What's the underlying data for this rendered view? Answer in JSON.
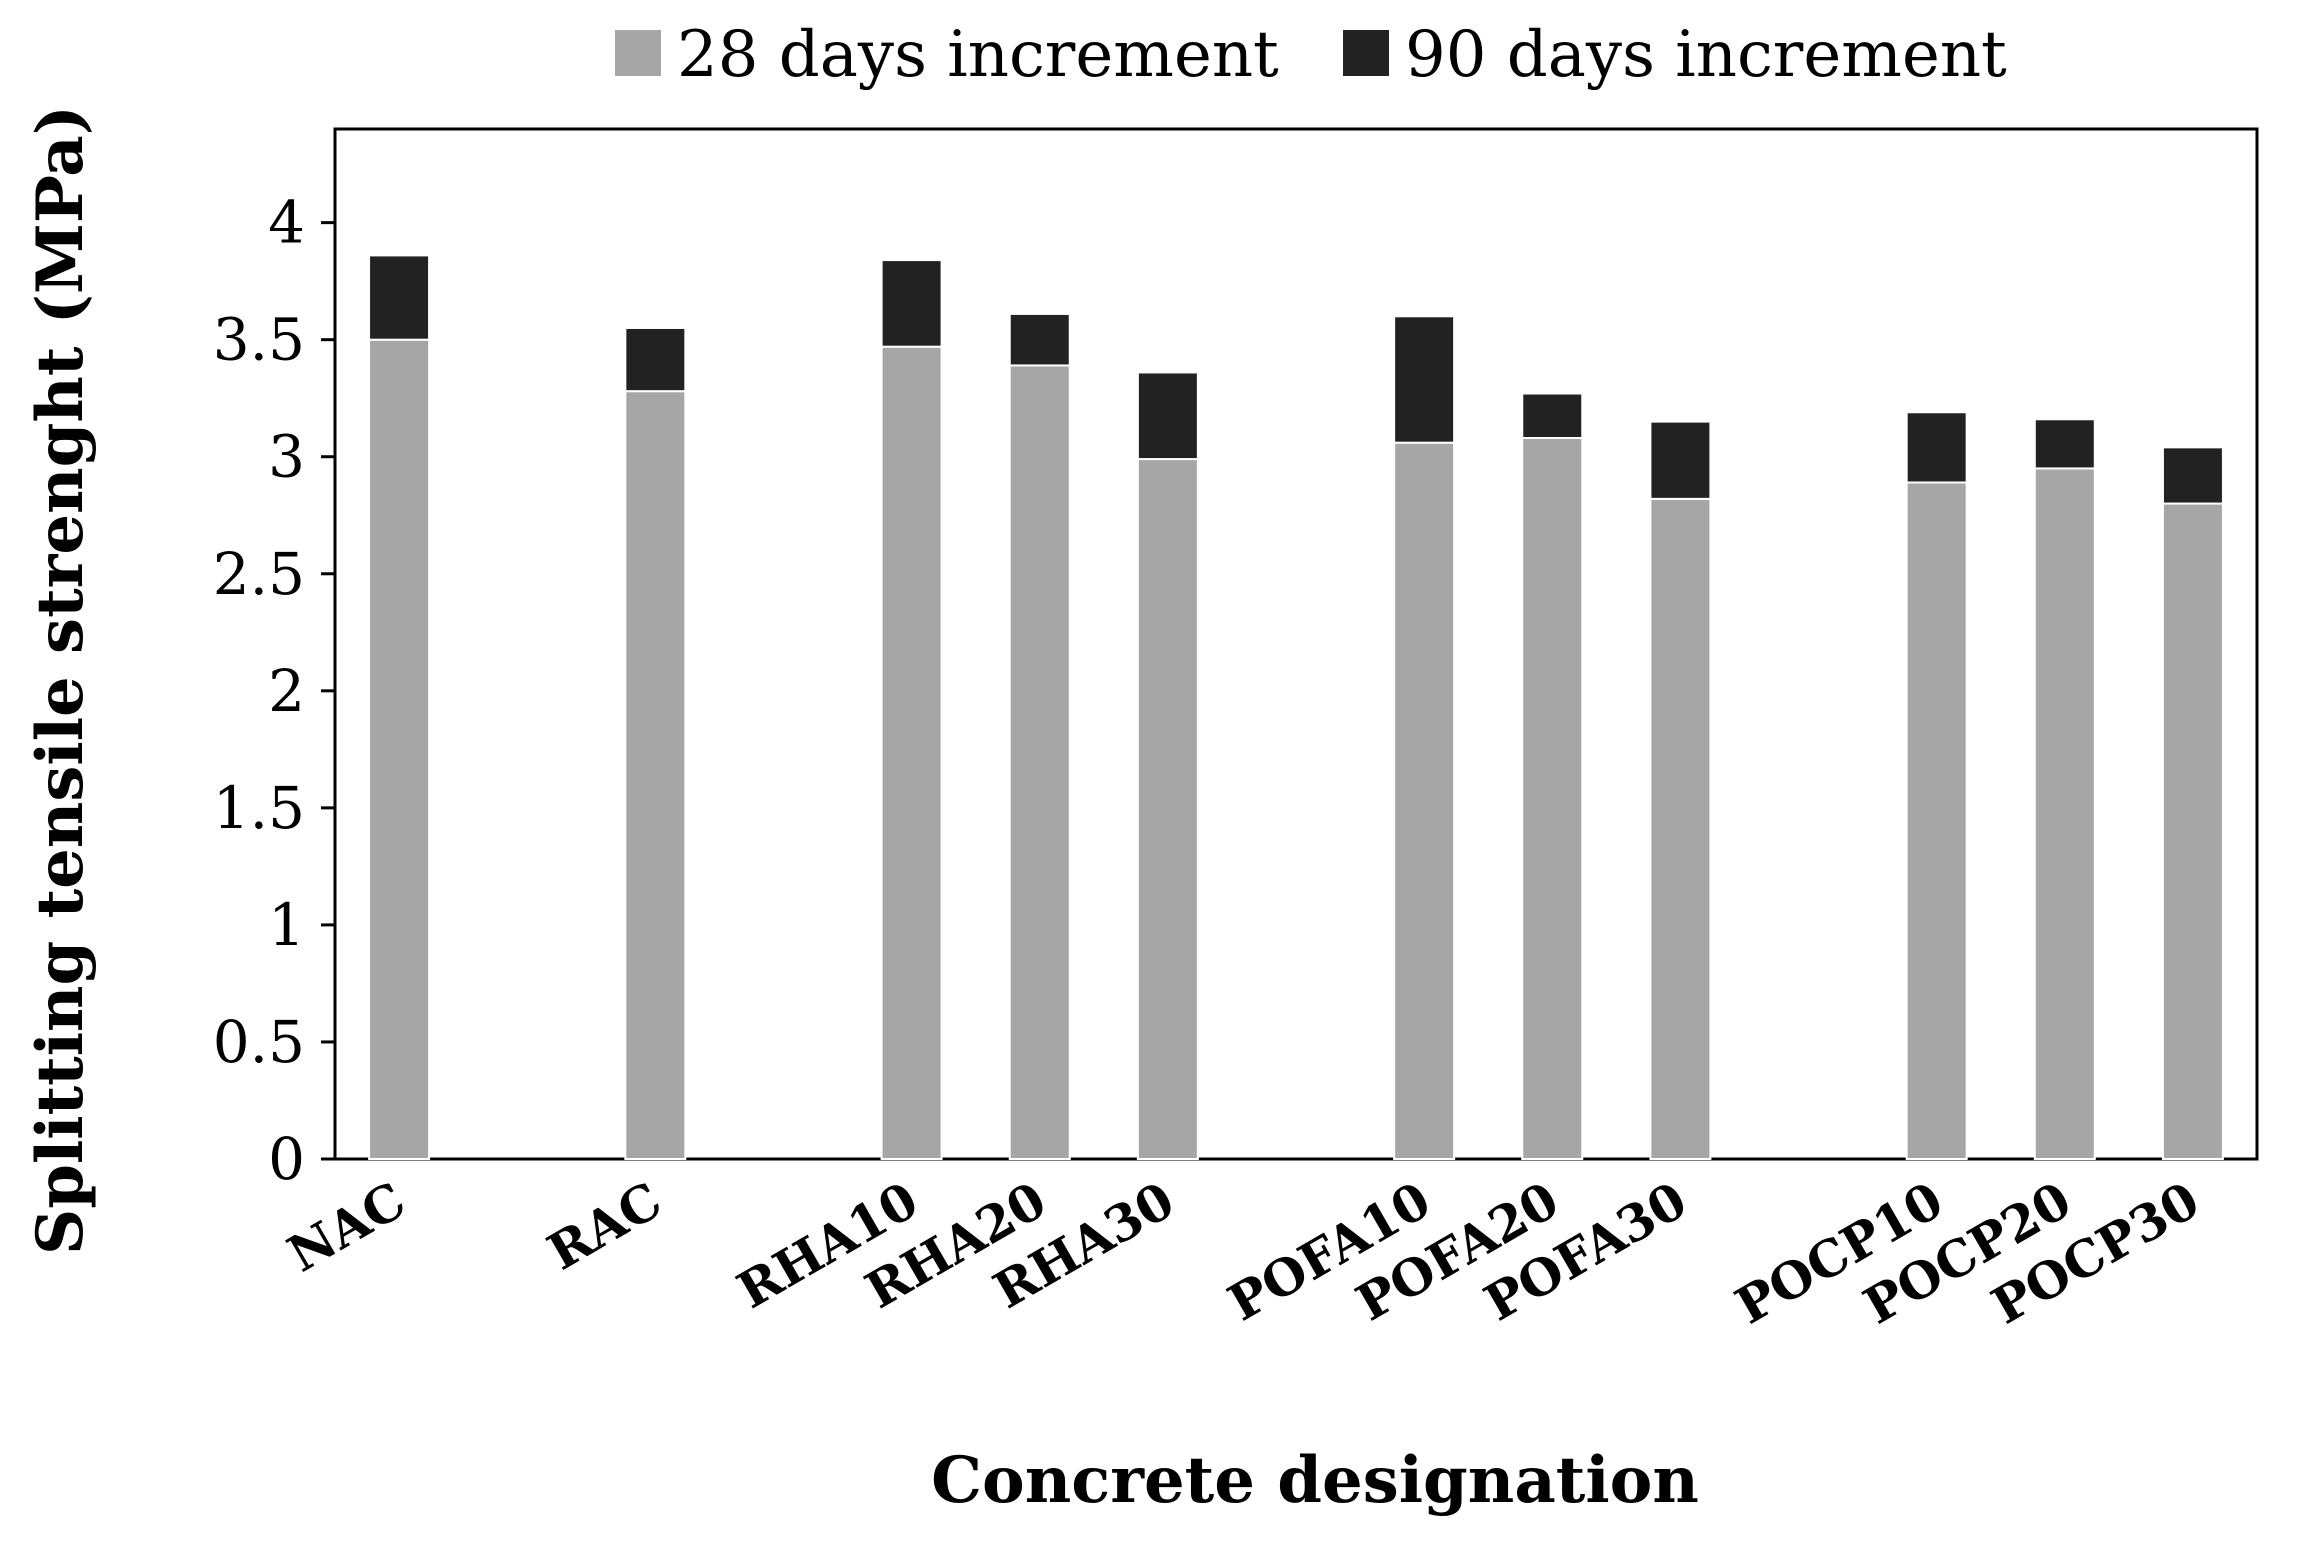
{
  "chart_data": {
    "type": "bar",
    "stacked": true,
    "title": "",
    "xlabel": "Concrete designation",
    "ylabel": "Splitting tensile strenght (MPa)",
    "ylim": [
      0,
      4.4
    ],
    "yticks": [
      0,
      0.5,
      1,
      1.5,
      2,
      2.5,
      3,
      3.5,
      4
    ],
    "ytick_labels": [
      "0",
      "0.5",
      "1",
      "1.5",
      "2",
      "2.5",
      "3",
      "3.5",
      "4"
    ],
    "grid": false,
    "legend_position": "top",
    "categories": [
      "NAC",
      "RAC",
      "RHA10",
      "RHA20",
      "RHA30",
      "POFA10",
      "POFA20",
      "POFA30",
      "POCP10",
      "POCP20",
      "POCP30"
    ],
    "category_slots": [
      0,
      2,
      4,
      5,
      6,
      8,
      9,
      10,
      12,
      13,
      14
    ],
    "slot_count": 15,
    "series": [
      {
        "name": "28 days increment",
        "color": "#a6a6a6",
        "values": [
          3.5,
          3.28,
          3.47,
          3.39,
          2.99,
          3.06,
          3.08,
          2.82,
          2.89,
          2.95,
          2.8
        ]
      },
      {
        "name": "90 days increment",
        "color": "#222222",
        "values": [
          0.36,
          0.27,
          0.37,
          0.22,
          0.37,
          0.54,
          0.19,
          0.33,
          0.3,
          0.21,
          0.24
        ]
      }
    ]
  }
}
